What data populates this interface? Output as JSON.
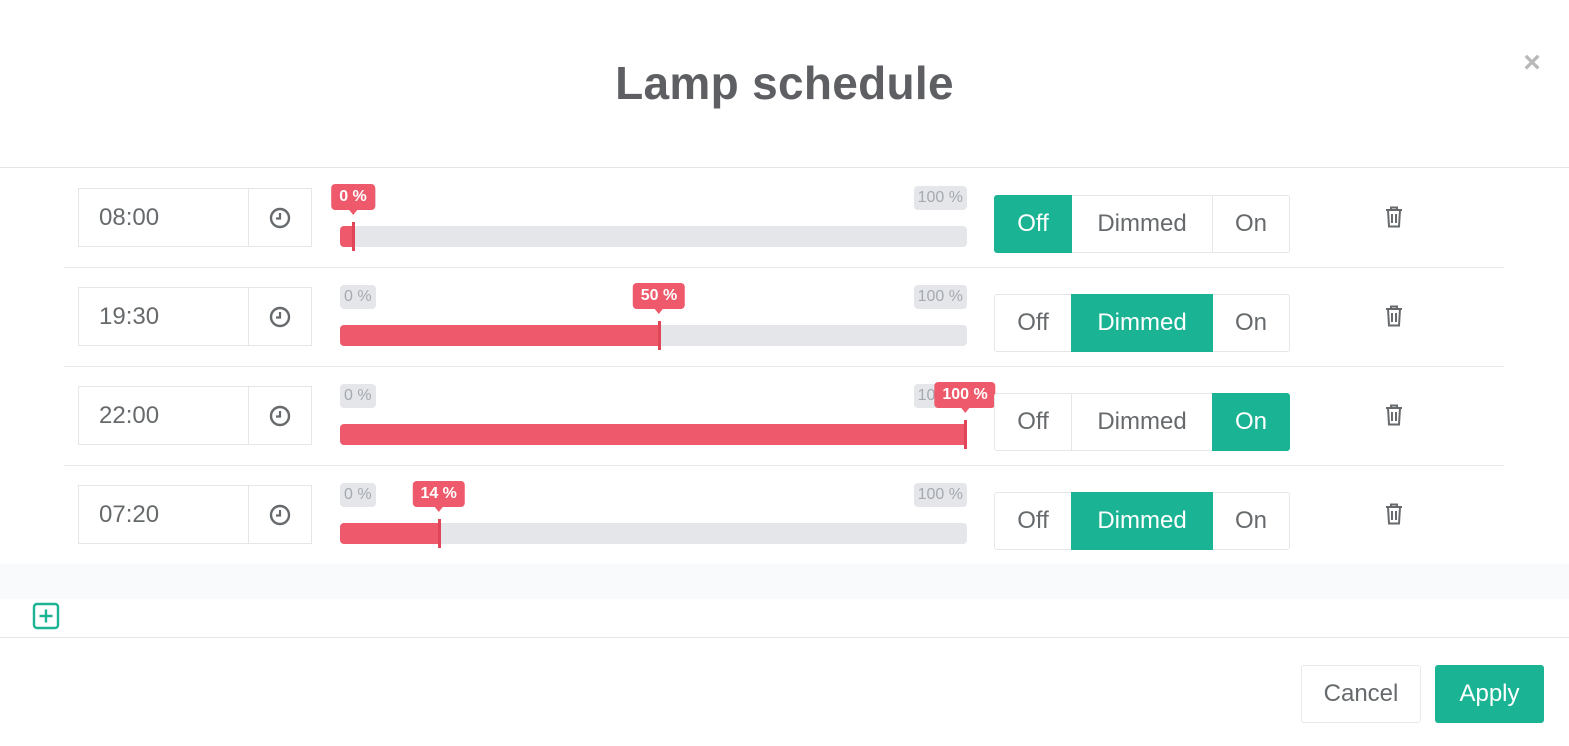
{
  "modal": {
    "title": "Lamp schedule",
    "close_glyph": "×"
  },
  "schedule": [
    {
      "time": "08:00",
      "level_percent": 0,
      "label_min": "0 %",
      "label_max": "100 %",
      "label_current": "0 %",
      "mode": "Off"
    },
    {
      "time": "19:30",
      "level_percent": 50,
      "label_min": "0 %",
      "label_max": "100 %",
      "label_current": "50 %",
      "mode": "Dimmed"
    },
    {
      "time": "22:00",
      "level_percent": 100,
      "label_min": "0 %",
      "label_max": "100 %",
      "label_current": "100 %",
      "mode": "On"
    },
    {
      "time": "07:20",
      "level_percent": 14,
      "label_min": "0 %",
      "label_max": "100 %",
      "label_current": "14 %",
      "mode": "Dimmed"
    }
  ],
  "modes": {
    "off": "Off",
    "dimmed": "Dimmed",
    "on": "On"
  },
  "footer": {
    "cancel_label": "Cancel",
    "apply_label": "Apply"
  },
  "icons": {
    "clock": "clock-icon",
    "trash": "trash-icon",
    "add": "plus-square-icon",
    "close": "close-icon"
  },
  "colors": {
    "accent": "#1ab394",
    "slider_fill": "#ee5a6b",
    "slider_track": "#e4e6ea",
    "title": "#5e5f63"
  }
}
